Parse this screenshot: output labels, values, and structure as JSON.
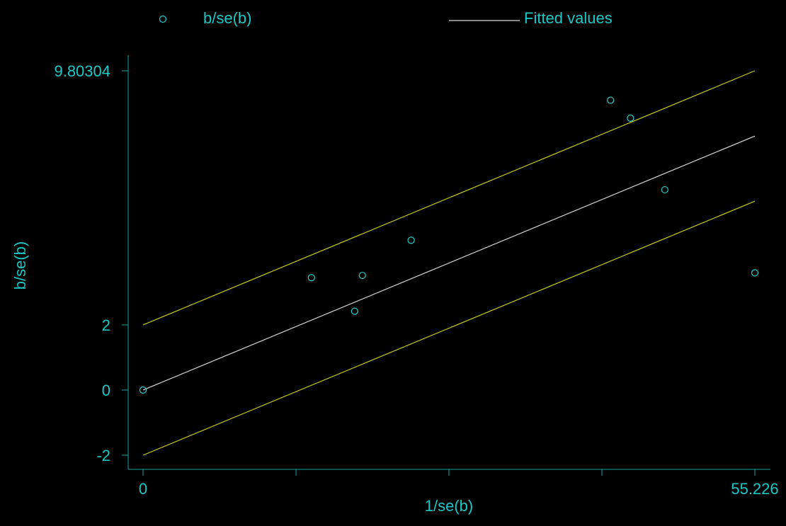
{
  "colors": {
    "background": "#000000",
    "axis": "#19a4a4",
    "text": "#19c8c8",
    "markers": "#1fd0d0",
    "fitted_line": "#d8d8d8",
    "confidence_bounds": "#c8c81a"
  },
  "legend": {
    "position": "top",
    "entries": [
      {
        "label": "b/se(b)",
        "marker": "hollow-circle"
      },
      {
        "label": "Fitted values",
        "marker": "line"
      }
    ]
  },
  "chart_data": {
    "type": "scatter",
    "xlabel": "1/se(b)",
    "ylabel": "b/se(b)",
    "xlim": [
      0,
      55.226
    ],
    "ylim": [
      -2,
      9.80304
    ],
    "x_tick_labels": [
      {
        "value": 0,
        "label": "0"
      },
      {
        "value": 55.226,
        "label": "55.226"
      }
    ],
    "x_minor_ticks": [
      13.81,
      27.61,
      41.42
    ],
    "y_tick_labels": [
      {
        "value": 9.80304,
        "label": "9.80304"
      },
      {
        "value": 2,
        "label": "2"
      },
      {
        "value": 0,
        "label": "0"
      },
      {
        "value": -2,
        "label": "-2"
      }
    ],
    "grid": false,
    "series": [
      {
        "name": "b/se(b)",
        "style": "hollow-circle",
        "points": [
          {
            "x": 0,
            "y": 0
          },
          {
            "x": 15.2,
            "y": 3.45
          },
          {
            "x": 19.1,
            "y": 2.42
          },
          {
            "x": 19.8,
            "y": 3.52
          },
          {
            "x": 24.2,
            "y": 4.6
          },
          {
            "x": 42.2,
            "y": 8.9
          },
          {
            "x": 44.0,
            "y": 8.35
          },
          {
            "x": 47.1,
            "y": 6.15
          },
          {
            "x": 55.226,
            "y": 3.6
          }
        ]
      },
      {
        "name": "Fitted values",
        "style": "line",
        "points": [
          {
            "x": 0,
            "y": 0
          },
          {
            "x": 55.226,
            "y": 7.8
          }
        ]
      },
      {
        "style": "line-bound",
        "points": [
          {
            "x": 0,
            "y": 2
          },
          {
            "x": 55.226,
            "y": 9.80304
          }
        ]
      },
      {
        "style": "line-bound",
        "points": [
          {
            "x": 0,
            "y": -2
          },
          {
            "x": 55.226,
            "y": 5.8
          }
        ]
      }
    ]
  }
}
